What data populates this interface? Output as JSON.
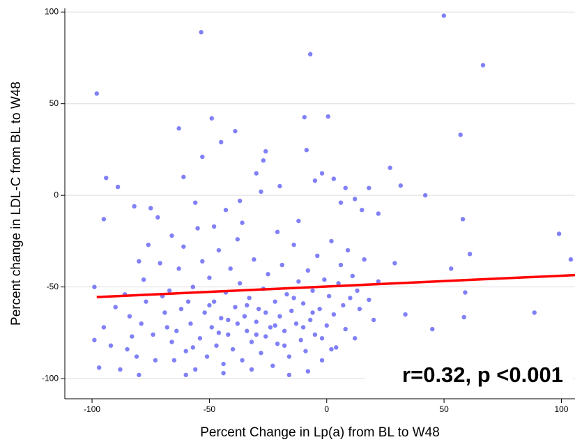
{
  "chart_data": {
    "type": "scatter",
    "x_label": "Percent Change in Lp(a) from BL to W48",
    "y_label": "Percent change in LDL-C from BL to W48",
    "annotation": "r=0.32, p <0.001",
    "color": "#4a4af5",
    "trend_color": "#ff0000",
    "grid": true,
    "xlim": [
      -111.6,
      105.8
    ],
    "ylim": [
      -111,
      102
    ],
    "xticks": [
      -100,
      -50,
      0,
      50,
      100
    ],
    "yticks": [
      -100,
      -50,
      0,
      50,
      100
    ],
    "trend_x": [
      -98,
      106
    ],
    "trend_y": [
      -55.5,
      -43.5
    ],
    "x": [
      -98,
      -53.5,
      49.9,
      -7,
      66.6,
      57,
      -94,
      -89,
      -95,
      -63,
      -53,
      -49,
      -39,
      -45,
      -9.5,
      -8.6,
      0.6,
      18,
      27,
      31.5,
      42,
      58,
      61,
      53,
      99,
      104,
      59,
      58.5,
      88.5,
      45,
      33.5,
      29,
      -61,
      -30,
      -27,
      -26,
      -20,
      -5,
      -2,
      3,
      8,
      12,
      6,
      15,
      22,
      -28,
      -37,
      -43,
      -56,
      -75,
      -82,
      -99,
      -99,
      -97,
      -95,
      -90,
      -88,
      -85,
      -84,
      -80,
      -78,
      -76,
      -72,
      -70,
      -68,
      -66,
      -65,
      -63,
      -62,
      -60,
      -58,
      -57,
      -56,
      -55,
      -54,
      -52,
      -51,
      -50,
      -49,
      -48,
      -47,
      -46,
      -45,
      -44,
      -43,
      -42,
      -41,
      -40,
      -39,
      -38,
      -37,
      -36,
      -35,
      -34,
      -33,
      -32,
      -31,
      -30,
      -29,
      -28,
      -27,
      -26,
      -25,
      -24,
      -23,
      -22,
      -21,
      -20,
      -19,
      -18,
      -17,
      -16,
      -15,
      -14,
      -13,
      -12,
      -11,
      -10,
      -9,
      -8,
      -7,
      -6,
      -5,
      -4,
      -3,
      -2,
      -1,
      0,
      1,
      2,
      3,
      4,
      5,
      6,
      7,
      8,
      9,
      10,
      11,
      12,
      13,
      14,
      16,
      18,
      20,
      22,
      -74,
      -73,
      -71,
      -69,
      -67,
      -64,
      -61,
      -59,
      -57,
      -53,
      -50,
      -46,
      -42,
      -38,
      -34,
      -30,
      -26,
      -22,
      -18,
      -14,
      -10,
      -6,
      -2,
      2,
      -86,
      -83,
      -81,
      -79,
      -77,
      -92,
      -80,
      -66,
      -48,
      -36,
      -21,
      -12,
      -16,
      -44,
      -60,
      -32,
      -8
    ],
    "y": [
      55.5,
      89,
      98,
      77,
      71,
      33,
      9.5,
      4.6,
      -13,
      36.5,
      21,
      42,
      35,
      29,
      42.6,
      24.7,
      43,
      4,
      15,
      5.3,
      0,
      -13,
      -32,
      -40,
      -21,
      -35,
      -53,
      -66.5,
      -64,
      -73,
      -65,
      -37,
      10,
      12,
      19,
      24,
      5,
      8,
      12,
      9,
      4,
      -2,
      -4,
      -8,
      -10,
      2,
      -3,
      -8,
      -4,
      -7,
      -6,
      -50,
      -79,
      -94,
      -72,
      -61,
      -95,
      -84,
      -66,
      -98,
      -46,
      -27,
      -12,
      -55,
      -72,
      -80,
      -90,
      -40,
      -62,
      -85,
      -70,
      -50,
      -95,
      -18,
      -78,
      -64,
      -88,
      -45,
      -72,
      -58,
      -82,
      -30,
      -67,
      -92,
      -53,
      -76,
      -40,
      -84,
      -61,
      -70,
      -48,
      -90,
      -66,
      -74,
      -56,
      -80,
      -35,
      -69,
      -62,
      -86,
      -51,
      -77,
      -43,
      -72,
      -93,
      -58,
      -81,
      -66,
      -38,
      -74,
      -54,
      -88,
      -63,
      -27,
      -70,
      -47,
      -79,
      -59,
      -85,
      -41,
      -68,
      -52,
      -76,
      -33,
      -62,
      -90,
      -46,
      -71,
      -55,
      -25,
      -65,
      -83,
      -48,
      -38,
      -60,
      -73,
      -30,
      -56,
      -44,
      -78,
      -52,
      -62,
      -35,
      -57,
      -68,
      -47,
      -76,
      -90,
      -37,
      -64,
      -52,
      -74,
      -28,
      -58,
      -83,
      -36,
      -60,
      -75,
      -68,
      -24,
      -60,
      -76,
      -64,
      -71,
      -82,
      -56,
      -72,
      -64,
      -78,
      -84,
      -54,
      -77,
      -88,
      -70,
      -58,
      -82,
      -36,
      -22,
      -17,
      -15,
      -20,
      -14,
      -98,
      -97,
      -98,
      -95,
      -96
    ]
  }
}
